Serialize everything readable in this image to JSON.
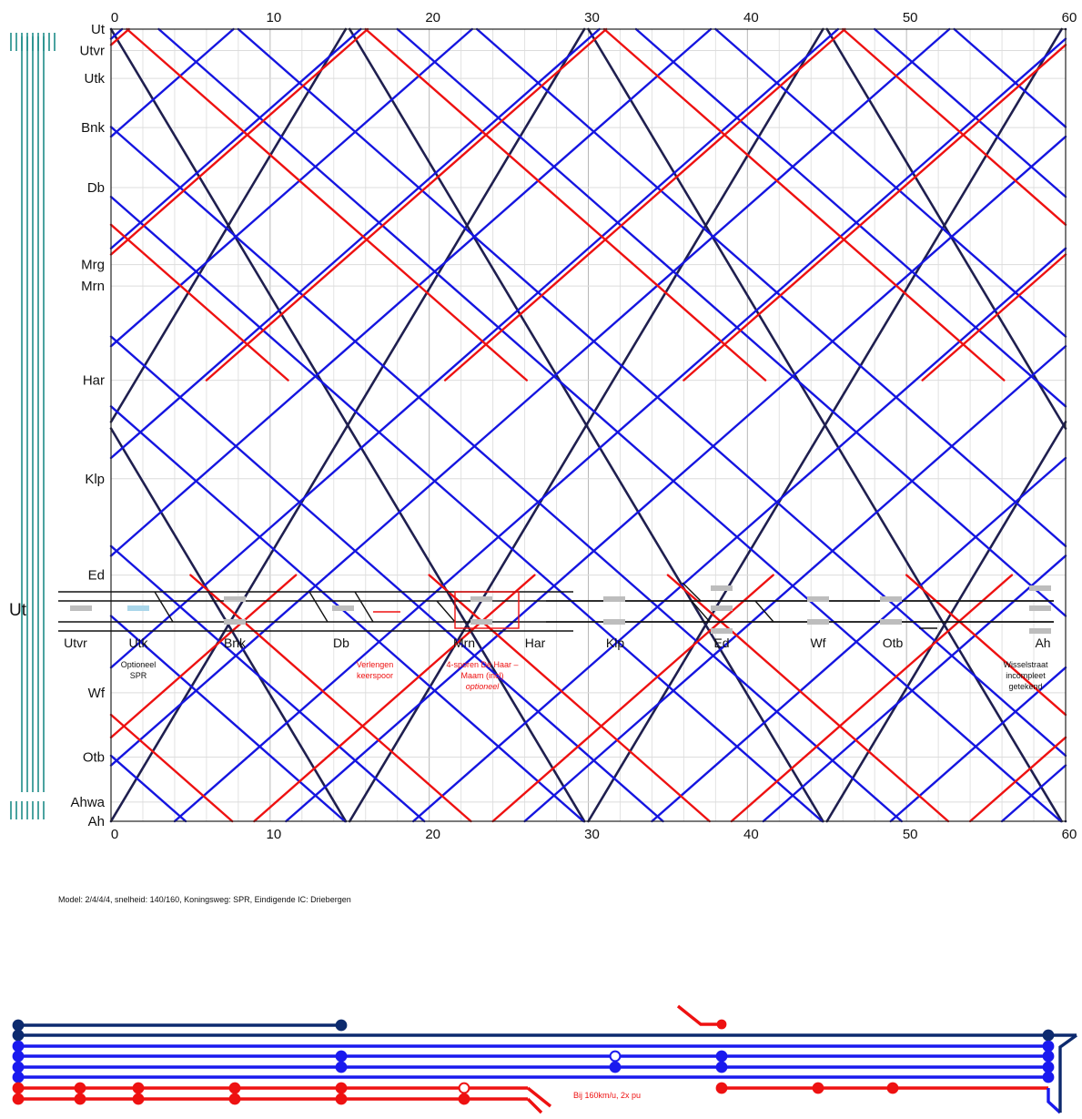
{
  "timetable": {
    "x_ticks": [
      "0",
      "10",
      "20",
      "30",
      "40",
      "50",
      "60"
    ],
    "stations": [
      {
        "code": "Ut",
        "km": 0
      },
      {
        "code": "Utvr",
        "km": 1.0
      },
      {
        "code": "Utk",
        "km": 2.3
      },
      {
        "code": "Bnk",
        "km": 4.6
      },
      {
        "code": "Db",
        "km": 7.4
      },
      {
        "code": "Mrg",
        "km": 11.0
      },
      {
        "code": "Mrn",
        "km": 12.0
      },
      {
        "code": "Har",
        "km": 16.4
      },
      {
        "code": "Klp",
        "km": 21.0
      },
      {
        "code": "Ed",
        "km": 25.5
      },
      {
        "code": "Wf",
        "km": 31.0
      },
      {
        "code": "Otb",
        "km": 34.0
      },
      {
        "code": "Ahwa",
        "km": 36.1
      },
      {
        "code": "Ah",
        "km": 37.0
      }
    ],
    "colors": {
      "ic": "#1f1f4f",
      "spr": "#1515e0",
      "extra": "#ee1111",
      "empty": "#808080"
    },
    "series": [
      {
        "type": "ic",
        "dir": "down",
        "starts": [
          0,
          30
        ],
        "speed": 0.97
      },
      {
        "type": "ic",
        "dir": "down",
        "starts": [
          15,
          45
        ],
        "speed": 0.97
      },
      {
        "type": "ic",
        "dir": "up",
        "starts": [
          0,
          30
        ],
        "speed": 0.97
      },
      {
        "type": "ic",
        "dir": "up",
        "starts": [
          15,
          45
        ],
        "speed": 0.97
      },
      {
        "type": "spr",
        "dir": "down",
        "starts": [
          3,
          18,
          33,
          48
        ],
        "speed": 0.62
      },
      {
        "type": "spr",
        "dir": "down",
        "starts": [
          8,
          23,
          38,
          53
        ],
        "speed": 0.62
      },
      {
        "type": "spr",
        "dir": "up",
        "starts": [
          4,
          19,
          34,
          49
        ],
        "speed": 0.62
      },
      {
        "type": "spr",
        "dir": "up",
        "starts": [
          11,
          26,
          41,
          56
        ],
        "speed": 0.62
      },
      {
        "type": "extra",
        "dir": "down",
        "starts": [
          1,
          16,
          31,
          46
        ],
        "speed": 0.62,
        "until_km": 16.4
      },
      {
        "type": "extra",
        "dir": "up",
        "starts": [
          6,
          21,
          36,
          51
        ],
        "speed": 0.62,
        "until_km": 16.4
      },
      {
        "type": "extra",
        "dir": "down",
        "starts": [
          5,
          20,
          35,
          50
        ],
        "speed": 0.62,
        "from_km": 25.5
      },
      {
        "type": "extra",
        "dir": "up",
        "starts": [
          9,
          24,
          39,
          54
        ],
        "speed": 0.62,
        "from_km": 25.5
      }
    ]
  },
  "diagram": {
    "model_caption": "Model: 2/4/4/4, snelheid: 140/160, Koningsweg: SPR, Eindigende IC: Driebergen",
    "start_label": "Ut",
    "stations": [
      "Utvr",
      "Utk",
      "Bnk",
      "Db",
      "Mrn",
      "Har",
      "Klp",
      "Ed",
      "Wf",
      "Otb",
      "Ah"
    ],
    "notes": {
      "utk": [
        "Optioneel",
        "SPR"
      ],
      "db": [
        "Verlengen",
        "keerspoor"
      ],
      "mrn": [
        "4-sporen De Haar –",
        "Maam (incl)",
        "optioneel"
      ],
      "ah": [
        "Wisselstraat",
        "incompleet",
        "getekend"
      ],
      "speed": "Bij 160km/u, 2x pu"
    }
  }
}
